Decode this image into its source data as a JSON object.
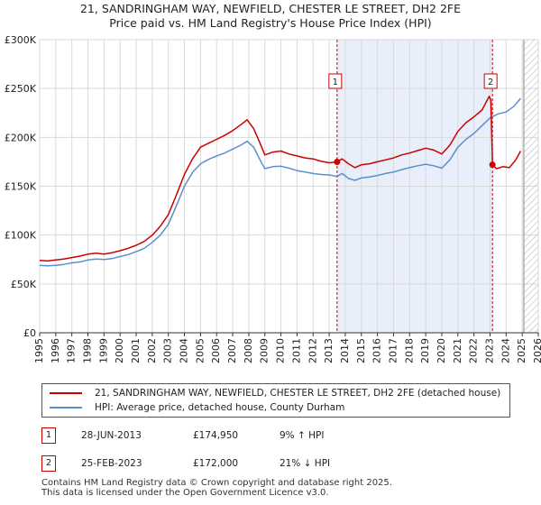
{
  "chart_data": {
    "type": "line",
    "title": "21, SANDRINGHAM WAY, NEWFIELD, CHESTER LE STREET, DH2 2FE",
    "subtitle": "Price paid vs. HM Land Registry's House Price Index (HPI)",
    "xlabel": "",
    "ylabel": "",
    "xlim": [
      1995,
      2026
    ],
    "ylim": [
      0,
      300000
    ],
    "x_ticks": [
      1995,
      1996,
      1997,
      1998,
      1999,
      2000,
      2001,
      2002,
      2003,
      2004,
      2005,
      2006,
      2007,
      2008,
      2009,
      2010,
      2011,
      2012,
      2013,
      2014,
      2015,
      2016,
      2017,
      2018,
      2019,
      2020,
      2021,
      2022,
      2023,
      2024,
      2025,
      2026
    ],
    "y_ticks": [
      {
        "value": 0,
        "label": "£0"
      },
      {
        "value": 50000,
        "label": "£50K"
      },
      {
        "value": 100000,
        "label": "£100K"
      },
      {
        "value": 150000,
        "label": "£150K"
      },
      {
        "value": 200000,
        "label": "£200K"
      },
      {
        "value": 250000,
        "label": "£250K"
      },
      {
        "value": 300000,
        "label": "£300K"
      }
    ],
    "grid": true,
    "shaded_region": {
      "from": 2013.49,
      "to": 2023.15
    },
    "forecast_hatch_from": 2025.1,
    "series": [
      {
        "name": "21, SANDRINGHAM WAY, NEWFIELD, CHESTER LE STREET, DH2 2FE (detached house)",
        "color": "#cc0000",
        "x": [
          1995,
          1995.5,
          1996,
          1996.5,
          1997,
          1997.5,
          1998,
          1998.5,
          1999,
          1999.5,
          2000,
          2000.5,
          2001,
          2001.5,
          2002,
          2002.5,
          2003,
          2003.5,
          2004,
          2004.5,
          2005,
          2005.5,
          2006,
          2006.5,
          2007,
          2007.5,
          2007.9,
          2008.3,
          2008.7,
          2009,
          2009.5,
          2010,
          2010.5,
          2011,
          2011.5,
          2012,
          2012.5,
          2013,
          2013.49,
          2013.8,
          2014.2,
          2014.6,
          2015,
          2015.5,
          2016,
          2016.5,
          2017,
          2017.5,
          2018,
          2018.5,
          2019,
          2019.5,
          2020,
          2020.5,
          2021,
          2021.5,
          2022,
          2022.5,
          2022.95,
          2023.05,
          2023.15,
          2023.4,
          2023.8,
          2024.2,
          2024.6,
          2024.9
        ],
        "y": [
          74000,
          73500,
          74500,
          75500,
          77000,
          78500,
          80500,
          81500,
          80500,
          82000,
          84000,
          86500,
          89500,
          93500,
          100000,
          109000,
          121000,
          141000,
          162000,
          178000,
          190000,
          194000,
          198000,
          202000,
          207000,
          213000,
          218000,
          209000,
          194000,
          182000,
          185000,
          186000,
          183000,
          181000,
          179000,
          178000,
          175500,
          174000,
          174950,
          178000,
          173000,
          169000,
          172000,
          173000,
          175000,
          177000,
          179000,
          182000,
          184000,
          186500,
          189000,
          187000,
          183000,
          192000,
          206000,
          215000,
          221000,
          228000,
          242000,
          238000,
          172000,
          168000,
          170000,
          169000,
          177000,
          186000
        ]
      },
      {
        "name": "HPI: Average price, detached house, County Durham",
        "color": "#5b8fcc",
        "x": [
          1995,
          1995.5,
          1996,
          1996.5,
          1997,
          1997.5,
          1998,
          1998.5,
          1999,
          1999.5,
          2000,
          2000.5,
          2001,
          2001.5,
          2002,
          2002.5,
          2003,
          2003.5,
          2004,
          2004.5,
          2005,
          2005.5,
          2006,
          2006.5,
          2007,
          2007.5,
          2007.9,
          2008.3,
          2008.7,
          2009,
          2009.5,
          2010,
          2010.5,
          2011,
          2011.5,
          2012,
          2012.5,
          2013,
          2013.49,
          2013.8,
          2014.2,
          2014.6,
          2015,
          2015.5,
          2016,
          2016.5,
          2017,
          2017.5,
          2018,
          2018.5,
          2019,
          2019.5,
          2020,
          2020.5,
          2021,
          2021.5,
          2022,
          2022.5,
          2023,
          2023.5,
          2024,
          2024.5,
          2024.9
        ],
        "y": [
          69000,
          68500,
          69000,
          70000,
          71500,
          72500,
          74500,
          75500,
          75000,
          76000,
          78000,
          80000,
          83000,
          86500,
          92500,
          100000,
          111000,
          130000,
          150000,
          164000,
          173000,
          177500,
          181000,
          184000,
          188000,
          192000,
          196000,
          190000,
          177000,
          168000,
          170000,
          170500,
          168500,
          166000,
          164500,
          163000,
          162000,
          161500,
          160000,
          163000,
          158000,
          156000,
          158500,
          159500,
          161000,
          163000,
          164500,
          167000,
          169000,
          171000,
          172500,
          171000,
          168500,
          177000,
          190000,
          198000,
          204000,
          212000,
          220000,
          224000,
          226000,
          232000,
          240000
        ]
      }
    ],
    "sales": [
      {
        "label": "1",
        "x": 2013.49,
        "y": 174950
      },
      {
        "label": "2",
        "x": 2023.15,
        "y": 172000
      }
    ]
  },
  "legend": {
    "property_label": "21, SANDRINGHAM WAY, NEWFIELD, CHESTER LE STREET, DH2 2FE (detached house)",
    "hpi_label": "HPI: Average price, detached house, County Durham"
  },
  "transactions": [
    {
      "num": "1",
      "date": "28-JUN-2013",
      "price": "£174,950",
      "hpi": "9% ↑ HPI"
    },
    {
      "num": "2",
      "date": "25-FEB-2023",
      "price": "£172,000",
      "hpi": "21% ↓ HPI"
    }
  ],
  "footer": {
    "line1": "Contains HM Land Registry data © Crown copyright and database right 2025.",
    "line2": "This data is licensed under the Open Government Licence v3.0."
  }
}
